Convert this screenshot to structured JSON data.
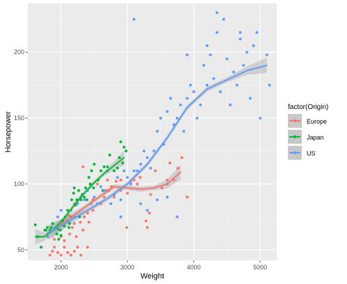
{
  "chart_data": {
    "type": "scatter",
    "title": "",
    "xlabel": "Weight",
    "ylabel": "Horsepower",
    "xlim": [
      1500,
      5250
    ],
    "ylim": [
      42,
      237
    ],
    "x_ticks": [
      2000,
      3000,
      4000,
      5000
    ],
    "y_ticks": [
      50,
      100,
      150,
      200
    ],
    "grid": true,
    "legend_placement": "right",
    "legend": {
      "title": "factor(Origin)",
      "entries": [
        "Europe",
        "Japan",
        "US"
      ]
    },
    "smooth": "loess with confidence band",
    "series": [
      {
        "name": "Europe",
        "color": "#F8766D",
        "points": [
          [
            1835,
            46
          ],
          [
            1870,
            49
          ],
          [
            1900,
            52
          ],
          [
            1950,
            48
          ],
          [
            2000,
            46
          ],
          [
            2050,
            52
          ],
          [
            2100,
            48
          ],
          [
            2150,
            46
          ],
          [
            2200,
            49
          ],
          [
            2250,
            52
          ],
          [
            2300,
            46
          ],
          [
            2400,
            52
          ],
          [
            1900,
            58
          ],
          [
            2000,
            60
          ],
          [
            2050,
            57
          ],
          [
            2130,
            62
          ],
          [
            2170,
            67
          ],
          [
            2200,
            70
          ],
          [
            2230,
            60
          ],
          [
            2290,
            71
          ],
          [
            2330,
            65
          ],
          [
            2350,
            75
          ],
          [
            2400,
            78
          ],
          [
            2420,
            71
          ],
          [
            2480,
            80
          ],
          [
            2600,
            85
          ],
          [
            2650,
            90
          ],
          [
            2680,
            95
          ],
          [
            2700,
            103
          ],
          [
            2720,
            95
          ],
          [
            2760,
            98
          ],
          [
            2800,
            90
          ],
          [
            2830,
            102
          ],
          [
            2900,
            95
          ],
          [
            2990,
            67
          ],
          [
            3000,
            93
          ],
          [
            3050,
            102
          ],
          [
            3100,
            103
          ],
          [
            3150,
            100
          ],
          [
            3190,
            105
          ],
          [
            3280,
            72
          ],
          [
            3300,
            67
          ],
          [
            3330,
            78
          ],
          [
            3350,
            92
          ],
          [
            3420,
            110
          ],
          [
            3520,
            97
          ],
          [
            3600,
            103
          ],
          [
            3640,
            116
          ],
          [
            3700,
            103
          ],
          [
            3760,
            112
          ],
          [
            3900,
            90
          ],
          [
            3820,
            120
          ],
          [
            2330,
            113
          ],
          [
            2120,
            76
          ],
          [
            2200,
            85
          ],
          [
            2550,
            100
          ],
          [
            2480,
            88
          ],
          [
            2900,
            103
          ]
        ],
        "trend": [
          [
            1850,
            64
          ],
          [
            2100,
            73
          ],
          [
            2350,
            82
          ],
          [
            2600,
            91
          ],
          [
            2800,
            98
          ],
          [
            3000,
            97
          ],
          [
            3200,
            96
          ],
          [
            3400,
            97
          ],
          [
            3600,
            100
          ],
          [
            3800,
            109
          ]
        ]
      },
      {
        "name": "Japan",
        "color": "#00BA38",
        "points": [
          [
            1613,
            69
          ],
          [
            1649,
            60
          ],
          [
            1700,
            52
          ],
          [
            1755,
            65
          ],
          [
            1773,
            65
          ],
          [
            1795,
            67
          ],
          [
            1800,
            60
          ],
          [
            1836,
            65
          ],
          [
            1850,
            67
          ],
          [
            1873,
            70
          ],
          [
            1900,
            66
          ],
          [
            1937,
            62
          ],
          [
            1950,
            66
          ],
          [
            1965,
            58
          ],
          [
            1990,
            65
          ],
          [
            2000,
            61
          ],
          [
            2019,
            69
          ],
          [
            2025,
            72
          ],
          [
            2050,
            68
          ],
          [
            2065,
            75
          ],
          [
            2100,
            80
          ],
          [
            2120,
            67
          ],
          [
            2130,
            70
          ],
          [
            2155,
            75
          ],
          [
            2160,
            88
          ],
          [
            2190,
            93
          ],
          [
            2200,
            97
          ],
          [
            2220,
            84
          ],
          [
            2240,
            88
          ],
          [
            2265,
            95
          ],
          [
            2280,
            75
          ],
          [
            2300,
            88
          ],
          [
            2320,
            92
          ],
          [
            2350,
            90
          ],
          [
            2370,
            97
          ],
          [
            2390,
            88
          ],
          [
            2420,
            105
          ],
          [
            2440,
            100
          ],
          [
            2460,
            110
          ],
          [
            2490,
            97
          ],
          [
            2500,
            115
          ],
          [
            2560,
            103
          ],
          [
            2600,
            110
          ],
          [
            2630,
            95
          ],
          [
            2650,
            113
          ],
          [
            2700,
            113
          ],
          [
            2735,
            122
          ],
          [
            2800,
            110
          ],
          [
            2850,
            112
          ],
          [
            2880,
            120
          ],
          [
            2900,
            132
          ],
          [
            2930,
            116
          ],
          [
            2950,
            128
          ],
          [
            2980,
            125
          ]
        ],
        "trend": [
          [
            1613,
            60
          ],
          [
            1750,
            60
          ],
          [
            1900,
            66
          ],
          [
            2050,
            74
          ],
          [
            2200,
            84
          ],
          [
            2350,
            93
          ],
          [
            2500,
            101
          ],
          [
            2650,
            108
          ],
          [
            2800,
            114
          ],
          [
            2950,
            120
          ]
        ]
      },
      {
        "name": "US",
        "color": "#619CFF",
        "points": [
          [
            1800,
            60
          ],
          [
            1900,
            65
          ],
          [
            1950,
            75
          ],
          [
            2000,
            80
          ],
          [
            2050,
            70
          ],
          [
            2100,
            72
          ],
          [
            2150,
            80
          ],
          [
            2200,
            75
          ],
          [
            2250,
            85
          ],
          [
            2300,
            90
          ],
          [
            2350,
            88
          ],
          [
            2400,
            95
          ],
          [
            2450,
            85
          ],
          [
            2500,
            90
          ],
          [
            2550,
            85
          ],
          [
            2600,
            98
          ],
          [
            2650,
            95
          ],
          [
            2700,
            110
          ],
          [
            2750,
            85
          ],
          [
            2800,
            92
          ],
          [
            2850,
            105
          ],
          [
            2900,
            88
          ],
          [
            2950,
            110
          ],
          [
            3000,
            105
          ],
          [
            3050,
            100
          ],
          [
            3100,
            110
          ],
          [
            3150,
            110
          ],
          [
            3200,
            115
          ],
          [
            3250,
            125
          ],
          [
            3300,
            120
          ],
          [
            3350,
            112
          ],
          [
            3400,
            125
          ],
          [
            3450,
            140
          ],
          [
            3500,
            150
          ],
          [
            3550,
            130
          ],
          [
            3600,
            155
          ],
          [
            3650,
            165
          ],
          [
            3700,
            145
          ],
          [
            3750,
            150
          ],
          [
            3800,
            160
          ],
          [
            3850,
            140
          ],
          [
            3900,
            165
          ],
          [
            3950,
            175
          ],
          [
            4000,
            170
          ],
          [
            4050,
            150
          ],
          [
            4100,
            160
          ],
          [
            4150,
            190
          ],
          [
            4200,
            175
          ],
          [
            4250,
            198
          ],
          [
            4300,
            180
          ],
          [
            4350,
            215
          ],
          [
            4400,
            170
          ],
          [
            4450,
            225
          ],
          [
            4500,
            195
          ],
          [
            4550,
            160
          ],
          [
            4600,
            185
          ],
          [
            4650,
            175
          ],
          [
            4700,
            215
          ],
          [
            4750,
            190
          ],
          [
            4800,
            200
          ],
          [
            4850,
            165
          ],
          [
            4900,
            205
          ],
          [
            4950,
            215
          ],
          [
            5000,
            150
          ],
          [
            5100,
            198
          ],
          [
            5140,
            175
          ],
          [
            3100,
            225
          ],
          [
            3600,
            100
          ],
          [
            3750,
            75
          ],
          [
            3200,
            85
          ],
          [
            3300,
            80
          ],
          [
            3450,
            88
          ],
          [
            3600,
            90
          ],
          [
            2900,
            75
          ],
          [
            4350,
            230
          ],
          [
            4200,
            205
          ],
          [
            3900,
            198
          ],
          [
            4700,
            210
          ]
        ],
        "trend": [
          [
            1800,
            63
          ],
          [
            2100,
            71
          ],
          [
            2400,
            80
          ],
          [
            2700,
            89
          ],
          [
            3000,
            100
          ],
          [
            3300,
            115
          ],
          [
            3600,
            135
          ],
          [
            3900,
            158
          ],
          [
            4200,
            172
          ],
          [
            4500,
            179
          ],
          [
            4800,
            186
          ],
          [
            5100,
            190
          ]
        ]
      }
    ]
  }
}
